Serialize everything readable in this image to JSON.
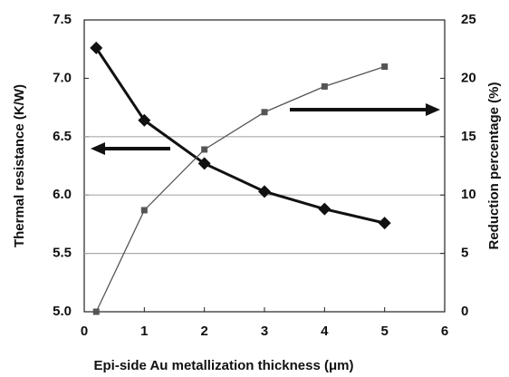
{
  "chart_data": {
    "type": "line",
    "x_label": "Epi-side Au metallization thickness (μm)",
    "y_label": "Thermal resistance (K/W)",
    "y2_label": "Reduction percentage (%)",
    "x": [
      0.2,
      1,
      2,
      3,
      4,
      5
    ],
    "series": [
      {
        "color": "#111111",
        "marker": "diamond",
        "values": [
          7.26,
          6.64,
          6.27,
          6.03,
          5.88,
          5.76
        ]
      },
      {
        "color": "#555555",
        "marker": "square",
        "axis": "y2",
        "values": [
          0,
          8.7,
          13.9,
          17.1,
          19.3,
          21.0
        ]
      }
    ],
    "xlim": [
      0,
      6
    ],
    "xticks": [
      0,
      1,
      2,
      3,
      4,
      5,
      6
    ],
    "ylim": [
      5,
      7.5
    ],
    "yticks": [
      {
        "value": 5,
        "label": "5.0"
      },
      5.5,
      {
        "value": 6,
        "label": "6.0"
      },
      6.5,
      {
        "value": 7,
        "label": "7.0"
      },
      7.5
    ],
    "y2lim": [
      0,
      25
    ],
    "y2ticks": [
      0,
      5,
      10,
      15,
      20,
      25
    ],
    "grid": true
  }
}
